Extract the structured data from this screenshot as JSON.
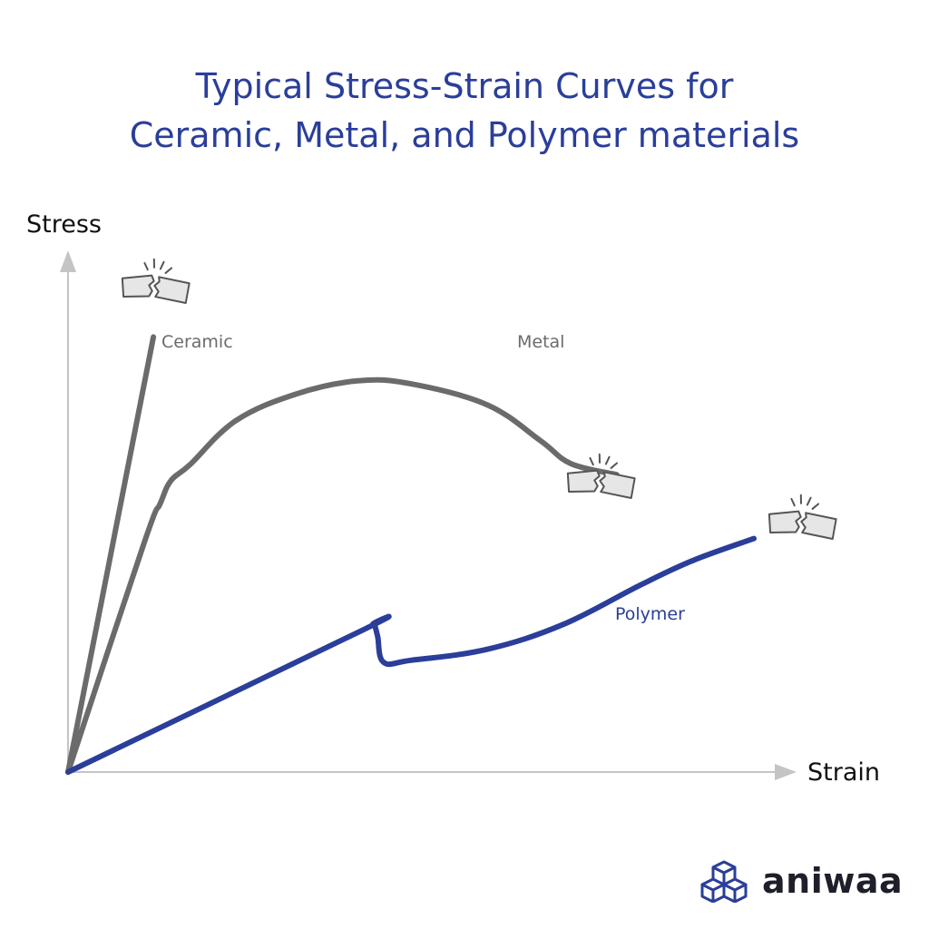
{
  "title_line1": "Typical Stress-Strain Curves for",
  "title_line2": "Ceramic, Metal, and Polymer materials",
  "brand": "aniwaa",
  "colors": {
    "title": "#2a3e9a",
    "ceramic": "#6b6b6b",
    "metal": "#6b6b6b",
    "polymer": "#2a3e9a",
    "axis": "#c4c4c4"
  },
  "chart_data": {
    "type": "line",
    "xlabel": "Strain",
    "ylabel": "Stress",
    "xlim": [
      0,
      100
    ],
    "ylim": [
      0,
      100
    ],
    "grid": false,
    "series": [
      {
        "name": "Ceramic",
        "fracture_icon": "fracture-icon",
        "points": [
          [
            0,
            0
          ],
          [
            11.2,
            87.2
          ]
        ]
      },
      {
        "name": "Metal",
        "fracture_icon": "fracture-icon",
        "points": [
          [
            0,
            0
          ],
          [
            10,
            46
          ],
          [
            12.1,
            53.8
          ],
          [
            13.5,
            58.4
          ],
          [
            16,
            61.6
          ],
          [
            22,
            70.4
          ],
          [
            30,
            75.8
          ],
          [
            38,
            78.4
          ],
          [
            45,
            77.8
          ],
          [
            55,
            73.6
          ],
          [
            62,
            66.4
          ],
          [
            66,
            61.8
          ],
          [
            72,
            59.6
          ]
        ]
      },
      {
        "name": "Polymer",
        "fracture_icon": "fracture-icon",
        "points": [
          [
            0,
            0
          ],
          [
            38.6,
            28.4
          ],
          [
            40,
            29.6
          ],
          [
            40.6,
            27.4
          ],
          [
            41.4,
            22
          ],
          [
            45,
            22.4
          ],
          [
            55,
            24.6
          ],
          [
            65,
            29.6
          ],
          [
            75,
            37.4
          ],
          [
            82,
            42.4
          ],
          [
            90,
            46.8
          ]
        ]
      }
    ]
  }
}
